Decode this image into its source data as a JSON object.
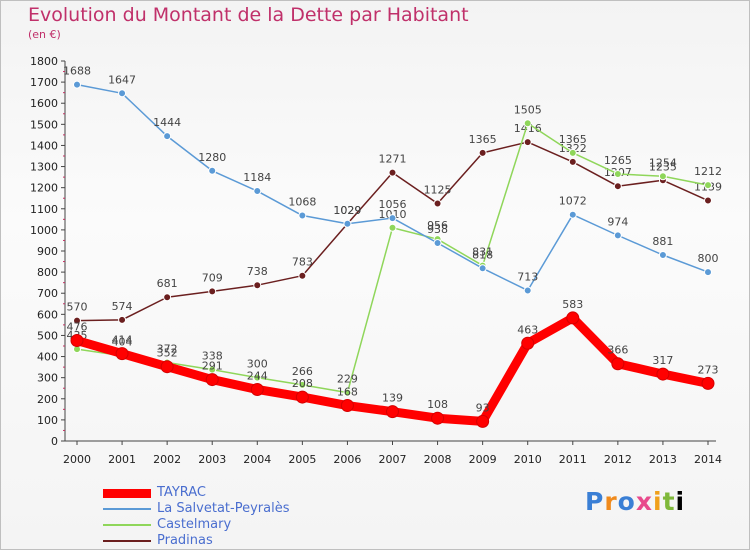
{
  "title": "Evolution du Montant de la Dette par Habitant",
  "unit": "(en €)",
  "logo": "Proxiti",
  "chart_data": {
    "type": "line",
    "x": [
      "2000",
      "2001",
      "2002",
      "2003",
      "2004",
      "2005",
      "2006",
      "2007",
      "2008",
      "2009",
      "2010",
      "2011",
      "2012",
      "2013",
      "2014"
    ],
    "ylim": [
      0,
      1800
    ],
    "yticks": [
      0,
      100,
      200,
      300,
      400,
      500,
      600,
      700,
      800,
      900,
      1000,
      1100,
      1200,
      1300,
      1400,
      1500,
      1600,
      1700,
      1800
    ],
    "grid": false,
    "legend": "bottom-left",
    "series": [
      {
        "name": "Pradinas",
        "color": "#6b1f1f",
        "values": [
          570,
          574,
          681,
          709,
          738,
          783,
          1029,
          1271,
          1125,
          1365,
          1416,
          1322,
          1207,
          1235,
          1139
        ]
      },
      {
        "name": "Castelmary",
        "color": "#8fd65a",
        "values": [
          435,
          404,
          372,
          338,
          300,
          266,
          229,
          1010,
          956,
          831,
          1505,
          1365,
          1265,
          1254,
          1212
        ]
      },
      {
        "name": "La Salvetat-Peyralès",
        "color": "#5b9ad6",
        "values": [
          1688,
          1647,
          1444,
          1280,
          1184,
          1068,
          1029,
          1056,
          938,
          818,
          713,
          1072,
          974,
          881,
          800
        ]
      },
      {
        "name": "TAYRAC",
        "color": "#ff0000",
        "values": [
          476,
          414,
          352,
          291,
          244,
          208,
          168,
          139,
          108,
          93,
          463,
          583,
          366,
          317,
          273
        ]
      }
    ],
    "legend_order": [
      "TAYRAC",
      "La Salvetat-Peyralès",
      "Castelmary",
      "Pradinas"
    ]
  }
}
